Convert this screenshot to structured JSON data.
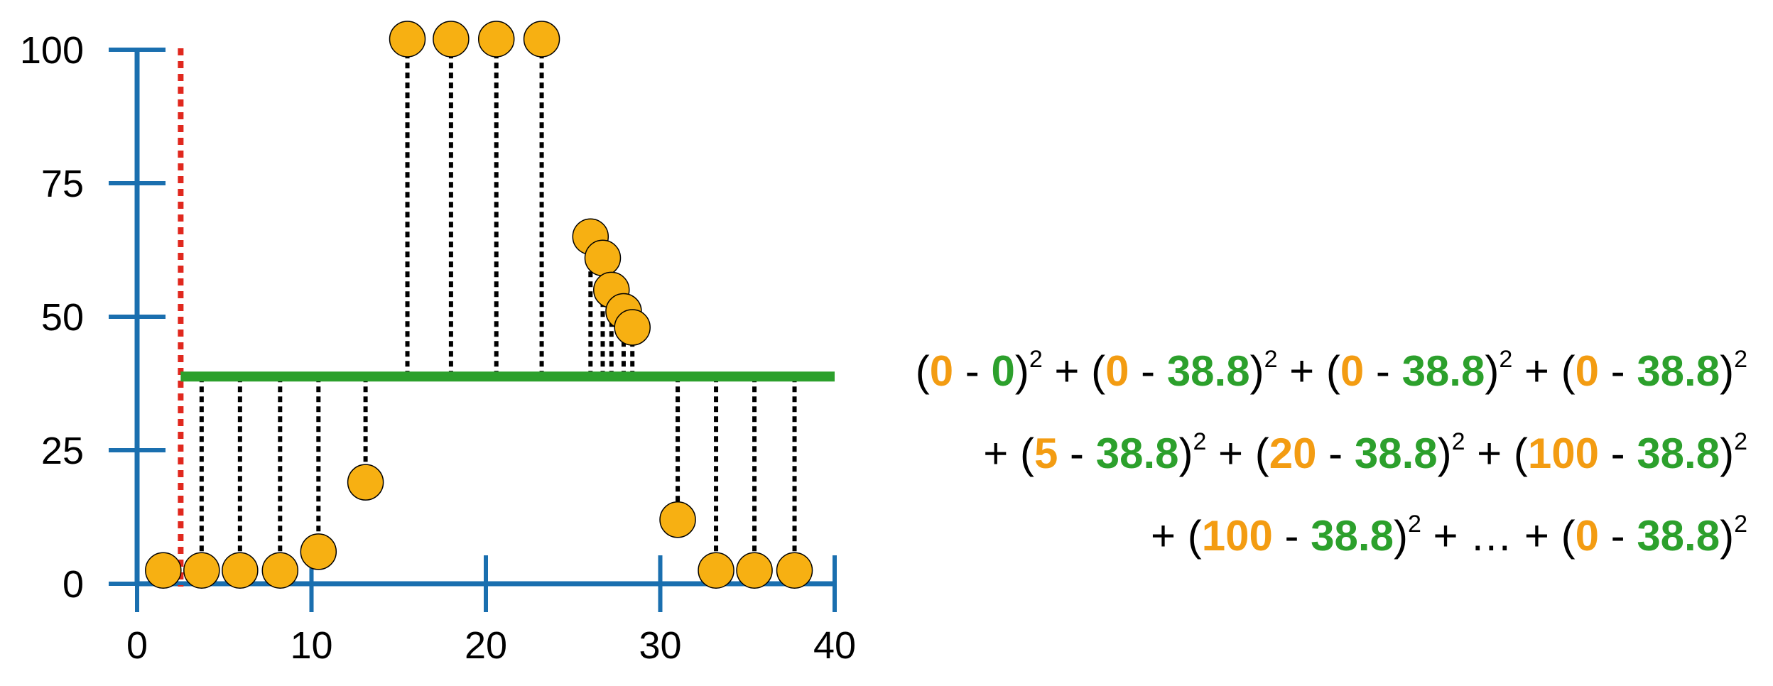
{
  "chart_data": {
    "type": "scatter",
    "xlim": [
      0,
      40
    ],
    "ylim": [
      0,
      100
    ],
    "x_ticks": [
      0,
      10,
      20,
      30,
      40
    ],
    "y_ticks": [
      0,
      25,
      50,
      75,
      100
    ],
    "points": [
      {
        "x": 1.5,
        "y": 2.5
      },
      {
        "x": 3.7,
        "y": 2.5
      },
      {
        "x": 5.9,
        "y": 2.5
      },
      {
        "x": 8.2,
        "y": 2.5
      },
      {
        "x": 10.4,
        "y": 6
      },
      {
        "x": 13.1,
        "y": 19
      },
      {
        "x": 15.5,
        "y": 102
      },
      {
        "x": 18.0,
        "y": 102
      },
      {
        "x": 20.6,
        "y": 102
      },
      {
        "x": 23.2,
        "y": 102
      },
      {
        "x": 26.0,
        "y": 65
      },
      {
        "x": 26.7,
        "y": 61
      },
      {
        "x": 27.2,
        "y": 55
      },
      {
        "x": 27.9,
        "y": 51
      },
      {
        "x": 28.4,
        "y": 48
      },
      {
        "x": 31.0,
        "y": 12
      },
      {
        "x": 33.2,
        "y": 2.5
      },
      {
        "x": 35.4,
        "y": 2.5
      },
      {
        "x": 37.7,
        "y": 2.5
      }
    ],
    "threshold_x": 2.5,
    "mean_line": {
      "y": 38.8,
      "x_start": 2.5,
      "x_end": 40
    },
    "colors": {
      "axis": "#1a6faf",
      "point": "#f7b012",
      "mean_line": "#2ca02c",
      "threshold": "#e0281e",
      "residual": "#000000"
    },
    "grid": false
  },
  "equation": {
    "line1": [
      {
        "t": "(",
        "c": "b"
      },
      {
        "t": "0",
        "c": "o"
      },
      {
        "t": " - ",
        "c": "b"
      },
      {
        "t": "0",
        "c": "g"
      },
      {
        "t": ")",
        "c": "b"
      },
      {
        "t": "2",
        "c": "sup"
      },
      {
        "t": " + (",
        "c": "b"
      },
      {
        "t": "0",
        "c": "o"
      },
      {
        "t": " - ",
        "c": "b"
      },
      {
        "t": "38.8",
        "c": "g"
      },
      {
        "t": ")",
        "c": "b"
      },
      {
        "t": "2",
        "c": "sup"
      },
      {
        "t": " + (",
        "c": "b"
      },
      {
        "t": "0",
        "c": "o"
      },
      {
        "t": " - ",
        "c": "b"
      },
      {
        "t": "38.8",
        "c": "g"
      },
      {
        "t": ")",
        "c": "b"
      },
      {
        "t": "2",
        "c": "sup"
      },
      {
        "t": " + (",
        "c": "b"
      },
      {
        "t": "0",
        "c": "o"
      },
      {
        "t": " - ",
        "c": "b"
      },
      {
        "t": "38.8",
        "c": "g"
      },
      {
        "t": ")",
        "c": "b"
      },
      {
        "t": "2",
        "c": "sup"
      }
    ],
    "line2": [
      {
        "t": "+ (",
        "c": "b"
      },
      {
        "t": "5",
        "c": "o"
      },
      {
        "t": " - ",
        "c": "b"
      },
      {
        "t": "38.8",
        "c": "g"
      },
      {
        "t": ")",
        "c": "b"
      },
      {
        "t": "2",
        "c": "sup"
      },
      {
        "t": " + (",
        "c": "b"
      },
      {
        "t": "20",
        "c": "o"
      },
      {
        "t": " - ",
        "c": "b"
      },
      {
        "t": "38.8",
        "c": "g"
      },
      {
        "t": ")",
        "c": "b"
      },
      {
        "t": "2",
        "c": "sup"
      },
      {
        "t": " + (",
        "c": "b"
      },
      {
        "t": "100",
        "c": "o"
      },
      {
        "t": " - ",
        "c": "b"
      },
      {
        "t": "38.8",
        "c": "g"
      },
      {
        "t": ")",
        "c": "b"
      },
      {
        "t": "2",
        "c": "sup"
      }
    ],
    "line3": [
      {
        "t": "+ (",
        "c": "b"
      },
      {
        "t": "100",
        "c": "o"
      },
      {
        "t": " - ",
        "c": "b"
      },
      {
        "t": "38.8",
        "c": "g"
      },
      {
        "t": ")",
        "c": "b"
      },
      {
        "t": "2",
        "c": "sup"
      },
      {
        "t": " + … + (",
        "c": "b"
      },
      {
        "t": "0",
        "c": "o"
      },
      {
        "t": " - ",
        "c": "b"
      },
      {
        "t": "38.8",
        "c": "g"
      },
      {
        "t": ")",
        "c": "b"
      },
      {
        "t": "2",
        "c": "sup"
      }
    ]
  }
}
